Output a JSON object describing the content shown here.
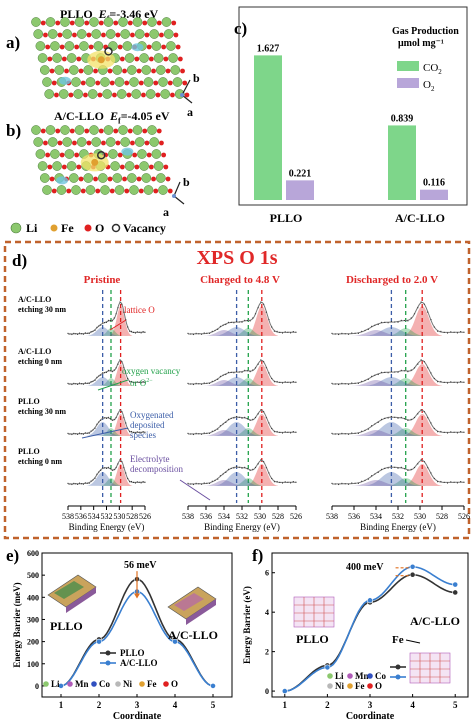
{
  "panel_a": {
    "label": "a)",
    "title_name": "PLLO",
    "title_energy_prefix": "E",
    "title_energy_sub": "f",
    "title_energy_value": "=-3.46 eV",
    "axis_b": "b",
    "axis_a": "a"
  },
  "panel_b": {
    "label": "b)",
    "title_name": "A/C-LLO",
    "title_energy_prefix": "E",
    "title_energy_sub": "f",
    "title_energy_value": "=-4.05 eV",
    "axis_b": "b",
    "axis_a": "a",
    "legend": [
      {
        "label": "Li",
        "color": "#8cc86e"
      },
      {
        "label": "Fe",
        "color": "#e0a030"
      },
      {
        "label": "O",
        "color": "#e02020"
      },
      {
        "label": "Vacancy",
        "color": "#303030"
      }
    ]
  },
  "panel_c": {
    "label": "c)",
    "legend_title_line1": "Gas Production",
    "legend_title_line2": "μmol mg⁻¹",
    "legend_co2": "CO",
    "legend_co2_sub": "2",
    "legend_o2": "O",
    "legend_o2_sub": "2",
    "colors": {
      "CO2": "#7ed68a",
      "O2": "#b8a6d9"
    }
  },
  "panel_d": {
    "label": "d)",
    "title": "XPS O 1s",
    "columns": [
      "Pristine",
      "Charged to 4.8 V",
      "Discharged to 2.0 V"
    ],
    "row_labels": [
      {
        "line1": "A/C-LLO",
        "line2": "etching 30 nm"
      },
      {
        "line1": "A/C-LLO",
        "line2": "etching 0 nm"
      },
      {
        "line1": "PLLO",
        "line2": "etching 30 nm"
      },
      {
        "line1": "PLLO",
        "line2": "etching 0 nm"
      }
    ],
    "annotations": {
      "lattice": "lattice O",
      "vacancy_line1": "oxygen vacancy",
      "vacancy_line2": "or O",
      "vacancy_sup": "2−",
      "deposited_line1": "Oxygenated",
      "deposited_line2": "deposited",
      "deposited_line3": "species",
      "electrolyte_line1": "Electrolyte",
      "electrolyte_line2": "decomposition"
    },
    "x_ticks": [
      "538",
      "536",
      "534",
      "532",
      "530",
      "528",
      "526"
    ],
    "x_label": "Binding Energy (eV)",
    "colors": {
      "title": "#e02828",
      "border": "#c0622c",
      "lattice": "#e02020",
      "vacancy": "#22a14a",
      "deposited": "#3c5ea8",
      "electrolyte": "#6a4fa0"
    }
  },
  "panel_e": {
    "label": "e)",
    "annotation": "56 meV",
    "structure_label_left": "PLLO",
    "structure_label_right": "A/C-LLO",
    "legend_pllo": "PLLO",
    "legend_acllo": "A/C-LLO",
    "atom_legend": [
      {
        "label": "Li",
        "color": "#8cc86e"
      },
      {
        "label": "Mn",
        "color": "#b05cb8"
      },
      {
        "label": "Co",
        "color": "#3050c0"
      },
      {
        "label": "Ni",
        "color": "#b8b8b8"
      },
      {
        "label": "Fe",
        "color": "#e0a030"
      },
      {
        "label": "O",
        "color": "#e02020"
      }
    ]
  },
  "panel_f": {
    "label": "f)",
    "annotation": "400 meV",
    "structure_label_left": "PLLO",
    "structure_label_right": "A/C-LLO",
    "fe_label": "Fe",
    "legend_pllo": "PLLO",
    "legend_acllo": "A/C-LLO",
    "atom_legend": [
      {
        "label": "Li",
        "color": "#8cc86e"
      },
      {
        "label": "Mn",
        "color": "#b05cb8"
      },
      {
        "label": "Co",
        "color": "#3050c0"
      },
      {
        "label": "Ni",
        "color": "#b8b8b8"
      },
      {
        "label": "Fe",
        "color": "#e0a030"
      },
      {
        "label": "O",
        "color": "#e02020"
      }
    ]
  },
  "chart_data": [
    {
      "type": "bar",
      "categories": [
        "PLLO",
        "A/C-LLO"
      ],
      "series": [
        {
          "name": "CO2",
          "values": [
            1.627,
            0.839
          ]
        },
        {
          "name": "O2",
          "values": [
            0.221,
            0.116
          ]
        }
      ],
      "data_labels": [
        "1.627",
        "0.221",
        "0.839",
        "0.116"
      ],
      "ylim": [
        0,
        1.8
      ],
      "grid": false,
      "legend": "top-right"
    },
    {
      "type": "line",
      "x": [
        1,
        2,
        3,
        4,
        5
      ],
      "series": [
        {
          "name": "PLLO",
          "values": [
            0,
            210,
            482,
            210,
            0
          ]
        },
        {
          "name": "A/C-LLO",
          "values": [
            0,
            200,
            426,
            200,
            0
          ]
        }
      ],
      "xlabel": "Coordinate",
      "ylabel": "Energy Barrier (meV)",
      "xlim": [
        0.5,
        5.5
      ],
      "ylim": [
        -50,
        600
      ],
      "x_ticks": [
        1,
        2,
        3,
        4,
        5
      ],
      "y_ticks": [
        0,
        100,
        200,
        300,
        400,
        500,
        600
      ]
    },
    {
      "type": "line",
      "x": [
        1,
        2,
        3,
        4,
        5
      ],
      "series": [
        {
          "name": "PLLO",
          "values": [
            0,
            1.3,
            4.5,
            5.9,
            5.0
          ]
        },
        {
          "name": "A/C-LLO",
          "values": [
            0,
            1.2,
            4.6,
            6.3,
            5.4
          ]
        }
      ],
      "xlabel": "Coordinate",
      "ylabel": "Energy Barrier (eV)",
      "xlim": [
        0.7,
        5.3
      ],
      "ylim": [
        -0.3,
        7
      ],
      "x_ticks": [
        1,
        2,
        3,
        4,
        5
      ],
      "y_ticks": [
        0,
        2,
        4,
        6
      ]
    }
  ]
}
